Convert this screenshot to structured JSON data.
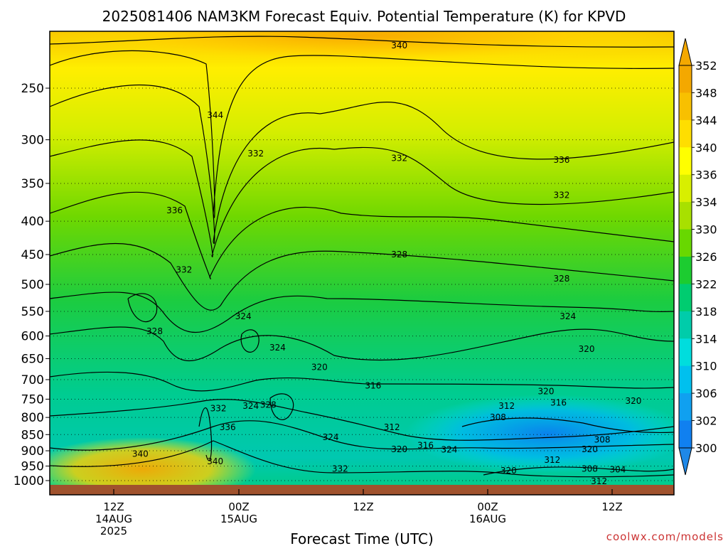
{
  "header": {
    "title": "2025081406 NAM3KM Forecast Equiv. Potential Temperature (K) for KPVD"
  },
  "footer": {
    "x_axis_title": "Forecast Time (UTC)",
    "credit": "coolwx.com/models"
  },
  "colors": {
    "credit": "#cc3333",
    "ground": "#a0522d",
    "contour": "#000000",
    "colormap_low": "#1e90ff",
    "colormap_high": "#ff9900"
  },
  "chart_data": {
    "type": "heatmap",
    "title": "2025081406 NAM3KM Forecast Equiv. Potential Temperature (K) for KPVD",
    "xlabel": "Forecast Time (UTC)",
    "ylabel": "",
    "y_scale": "log-pressure",
    "y_inverted": true,
    "y_ticks": [
      250,
      300,
      350,
      400,
      450,
      500,
      550,
      600,
      650,
      700,
      750,
      800,
      850,
      900,
      950,
      1000
    ],
    "ylim": [
      1000,
      200
    ],
    "grid": true,
    "x_ticks": [
      {
        "hour": "12Z",
        "day": "14AUG",
        "year": "2025"
      },
      {
        "hour": "00Z",
        "day": "15AUG",
        "year": ""
      },
      {
        "hour": "12Z",
        "day": "",
        "year": ""
      },
      {
        "hour": "00Z",
        "day": "16AUG",
        "year": ""
      },
      {
        "hour": "12Z",
        "day": "",
        "year": ""
      }
    ],
    "colorbar": {
      "labels": [
        352,
        348,
        344,
        340,
        336,
        334,
        330,
        326,
        322,
        318,
        314,
        310,
        306,
        302,
        300
      ],
      "colors": [
        "#f4a800",
        "#f8c000",
        "#ffde00",
        "#ffff00",
        "#d8ef00",
        "#a8e000",
        "#68d800",
        "#1ccc30",
        "#00cc70",
        "#00ccaa",
        "#00dddd",
        "#00c0ee",
        "#10a0f0",
        "#1080f0",
        "#1e88e8"
      ],
      "extends": "both"
    },
    "contour_labels": [
      {
        "text": "340",
        "x": 0.56,
        "p": 215
      },
      {
        "text": "344",
        "x": 0.265,
        "p": 275
      },
      {
        "text": "332",
        "x": 0.33,
        "p": 315
      },
      {
        "text": "332",
        "x": 0.56,
        "p": 320
      },
      {
        "text": "336",
        "x": 0.82,
        "p": 322
      },
      {
        "text": "336",
        "x": 0.2,
        "p": 385
      },
      {
        "text": "332",
        "x": 0.82,
        "p": 365
      },
      {
        "text": "328",
        "x": 0.56,
        "p": 450
      },
      {
        "text": "332",
        "x": 0.215,
        "p": 475
      },
      {
        "text": "328",
        "x": 0.82,
        "p": 490
      },
      {
        "text": "324",
        "x": 0.31,
        "p": 560
      },
      {
        "text": "324",
        "x": 0.83,
        "p": 560
      },
      {
        "text": "328",
        "x": 0.168,
        "p": 590
      },
      {
        "text": "324",
        "x": 0.365,
        "p": 625
      },
      {
        "text": "320",
        "x": 0.86,
        "p": 628
      },
      {
        "text": "320",
        "x": 0.432,
        "p": 670
      },
      {
        "text": "316",
        "x": 0.518,
        "p": 715
      },
      {
        "text": "320",
        "x": 0.795,
        "p": 730
      },
      {
        "text": "332",
        "x": 0.27,
        "p": 775
      },
      {
        "text": "324",
        "x": 0.322,
        "p": 768
      },
      {
        "text": "328",
        "x": 0.35,
        "p": 765
      },
      {
        "text": "320",
        "x": 0.935,
        "p": 755
      },
      {
        "text": "316",
        "x": 0.815,
        "p": 760
      },
      {
        "text": "312",
        "x": 0.732,
        "p": 768
      },
      {
        "text": "308",
        "x": 0.718,
        "p": 800
      },
      {
        "text": "336",
        "x": 0.285,
        "p": 828
      },
      {
        "text": "312",
        "x": 0.548,
        "p": 828
      },
      {
        "text": "324",
        "x": 0.45,
        "p": 858
      },
      {
        "text": "308",
        "x": 0.885,
        "p": 865
      },
      {
        "text": "316",
        "x": 0.602,
        "p": 883
      },
      {
        "text": "320",
        "x": 0.56,
        "p": 895
      },
      {
        "text": "324",
        "x": 0.64,
        "p": 897
      },
      {
        "text": "320",
        "x": 0.865,
        "p": 895
      },
      {
        "text": "340",
        "x": 0.145,
        "p": 910
      },
      {
        "text": "312",
        "x": 0.805,
        "p": 930
      },
      {
        "text": "340",
        "x": 0.265,
        "p": 935
      },
      {
        "text": "332",
        "x": 0.465,
        "p": 960
      },
      {
        "text": "308",
        "x": 0.865,
        "p": 960
      },
      {
        "text": "304",
        "x": 0.91,
        "p": 962
      },
      {
        "text": "320",
        "x": 0.735,
        "p": 965
      },
      {
        "text": "312",
        "x": 0.88,
        "p": 1002
      }
    ]
  }
}
